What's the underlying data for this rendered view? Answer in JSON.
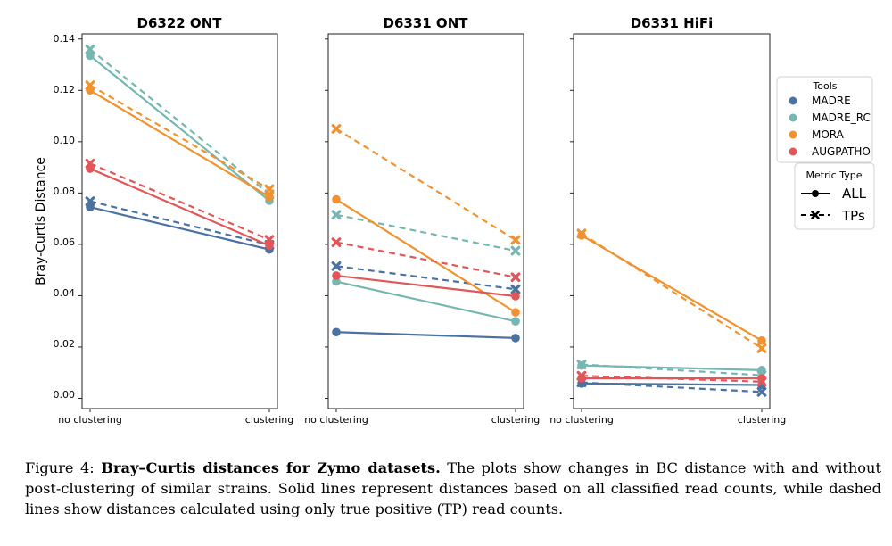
{
  "chart_data": {
    "type": "line",
    "ylabel": "Bray-Curtis Distance",
    "categories": [
      "no clustering",
      "clustering"
    ],
    "ylim": [
      -0.004,
      0.142
    ],
    "yticks": [
      0.0,
      0.02,
      0.04,
      0.06,
      0.08,
      0.1,
      0.12,
      0.14
    ],
    "ytick_labels": [
      "0.00",
      "0.02",
      "0.04",
      "0.06",
      "0.08",
      "0.10",
      "0.12",
      "0.14"
    ],
    "colors": {
      "MADRE": "#4c72a0",
      "MADRE_RC": "#76b7b2",
      "MORA": "#f0922f",
      "AUGPATHO": "#e15759"
    },
    "panels": [
      {
        "title": "D6322 ONT",
        "series": [
          {
            "tool": "MADRE",
            "metric": "ALL",
            "values": [
              0.0745,
              0.058
            ]
          },
          {
            "tool": "MADRE",
            "metric": "TPs",
            "values": [
              0.0768,
              0.0598
            ]
          },
          {
            "tool": "MADRE_RC",
            "metric": "ALL",
            "values": [
              0.1335,
              0.077
            ]
          },
          {
            "tool": "MADRE_RC",
            "metric": "TPs",
            "values": [
              0.136,
              0.0795
            ]
          },
          {
            "tool": "MORA",
            "metric": "ALL",
            "values": [
              0.12,
              0.0785
            ]
          },
          {
            "tool": "MORA",
            "metric": "TPs",
            "values": [
              0.122,
              0.0815
            ]
          },
          {
            "tool": "AUGPATHO",
            "metric": "ALL",
            "values": [
              0.0895,
              0.0595
            ]
          },
          {
            "tool": "AUGPATHO",
            "metric": "TPs",
            "values": [
              0.0915,
              0.0618
            ]
          }
        ]
      },
      {
        "title": "D6331 ONT",
        "series": [
          {
            "tool": "MADRE",
            "metric": "ALL",
            "values": [
              0.0258,
              0.0235
            ]
          },
          {
            "tool": "MADRE",
            "metric": "TPs",
            "values": [
              0.0515,
              0.0425
            ]
          },
          {
            "tool": "MADRE_RC",
            "metric": "ALL",
            "values": [
              0.0455,
              0.03
            ]
          },
          {
            "tool": "MADRE_RC",
            "metric": "TPs",
            "values": [
              0.0715,
              0.0575
            ]
          },
          {
            "tool": "MORA",
            "metric": "ALL",
            "values": [
              0.0775,
              0.0335
            ]
          },
          {
            "tool": "MORA",
            "metric": "TPs",
            "values": [
              0.105,
              0.0617
            ]
          },
          {
            "tool": "AUGPATHO",
            "metric": "ALL",
            "values": [
              0.0478,
              0.0398
            ]
          },
          {
            "tool": "AUGPATHO",
            "metric": "TPs",
            "values": [
              0.0608,
              0.0472
            ]
          }
        ]
      },
      {
        "title": "D6331 HiFi",
        "series": [
          {
            "tool": "MADRE",
            "metric": "ALL",
            "values": [
              0.0058,
              0.0052
            ]
          },
          {
            "tool": "MADRE",
            "metric": "TPs",
            "values": [
              0.0062,
              0.0025
            ]
          },
          {
            "tool": "MADRE_RC",
            "metric": "ALL",
            "values": [
              0.0128,
              0.011
            ]
          },
          {
            "tool": "MADRE_RC",
            "metric": "TPs",
            "values": [
              0.0132,
              0.009
            ]
          },
          {
            "tool": "MORA",
            "metric": "ALL",
            "values": [
              0.0635,
              0.0225
            ]
          },
          {
            "tool": "MORA",
            "metric": "TPs",
            "values": [
              0.0642,
              0.0195
            ]
          },
          {
            "tool": "AUGPATHO",
            "metric": "ALL",
            "values": [
              0.0078,
              0.0078
            ]
          },
          {
            "tool": "AUGPATHO",
            "metric": "TPs",
            "values": [
              0.0088,
              0.0065
            ]
          }
        ]
      }
    ],
    "legend": {
      "tools_title": "Tools",
      "tools": [
        "MADRE",
        "MADRE_RC",
        "MORA",
        "AUGPATHO"
      ],
      "metric_title": "Metric Type",
      "metrics": [
        "ALL",
        "TPs"
      ],
      "placement": "right"
    }
  },
  "caption": {
    "label": "Figure 4:",
    "bold": "Bray–Curtis distances for Zymo datasets.",
    "text": "The plots show changes in BC distance with and without post-clustering of similar strains. Solid lines represent distances based on all classified read counts, while dashed lines show distances calculated using only true positive (TP) read counts."
  }
}
